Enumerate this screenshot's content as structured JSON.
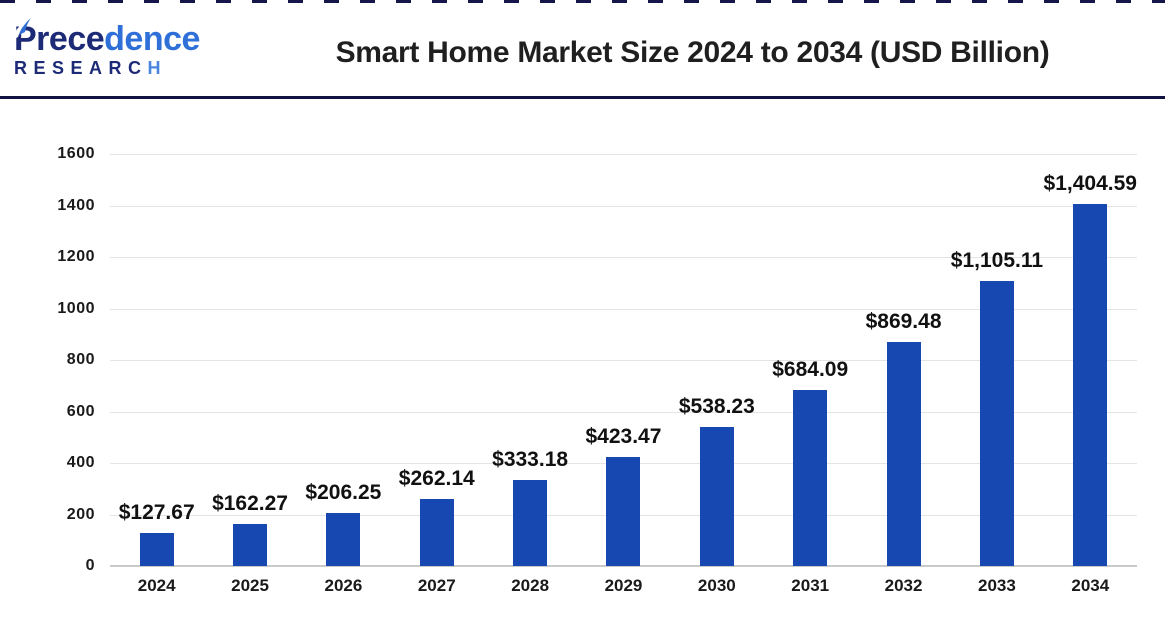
{
  "brand": {
    "name_dark": "Prece",
    "name_light": "dence",
    "research_dark": "RESEARC",
    "research_light": "H"
  },
  "header": {
    "title": "Smart Home Market Size 2024 to 2034 (USD Billion)"
  },
  "chart_data": {
    "type": "bar",
    "title": "Smart Home Market Size 2024 to 2034 (USD Billion)",
    "unit": "USD Billion",
    "xlabel": "",
    "ylabel": "",
    "categories": [
      "2024",
      "2025",
      "2026",
      "2027",
      "2028",
      "2029",
      "2030",
      "2031",
      "2032",
      "2033",
      "2034"
    ],
    "values": [
      127.67,
      162.27,
      206.25,
      262.14,
      333.18,
      423.47,
      538.23,
      684.09,
      869.48,
      1105.11,
      1404.59
    ],
    "value_labels": [
      "$127.67",
      "$162.27",
      "$206.25",
      "$262.14",
      "$333.18",
      "$423.47",
      "$538.23",
      "$684.09",
      "$869.48",
      "$1,105.11",
      "$1,404.59"
    ],
    "ylim": [
      0,
      1600
    ],
    "ytick_step": 200,
    "grid": true,
    "legend": "none",
    "bar_color": "#1747b0"
  },
  "colors": {
    "bar": "#1747b0",
    "divider": "#11123f",
    "gridline": "#e4e4e4",
    "axis_line": "#c9c9c9",
    "brand_dark": "#1d2b77",
    "brand_light": "#2f6fd8",
    "brand_light_alt": "#4a86e0",
    "title_text": "#1f1f1f",
    "label_text": "#111111"
  }
}
